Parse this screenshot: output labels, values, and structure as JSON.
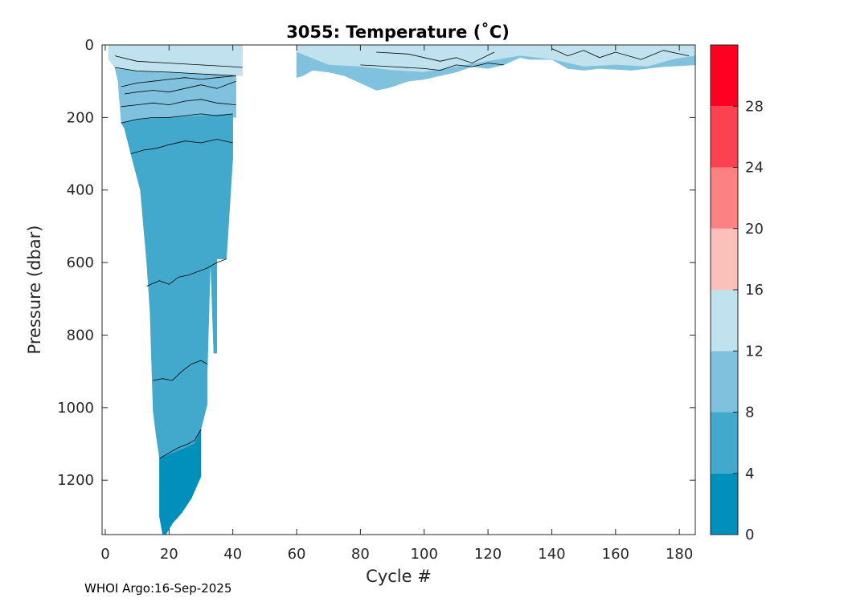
{
  "chart_data": {
    "type": "contourf",
    "title": "3055:  Temperature (˚C)",
    "xlabel": "Cycle #",
    "ylabel": "Pressure (dbar)",
    "xlim": [
      -1,
      185
    ],
    "ylim": [
      0,
      1350
    ],
    "y_reversed": true,
    "xticks": [
      0,
      20,
      40,
      60,
      80,
      100,
      120,
      140,
      160,
      180
    ],
    "yticks": [
      0,
      200,
      400,
      600,
      800,
      1000,
      1200
    ],
    "colorbar": {
      "levels": [
        0,
        4,
        8,
        12,
        16,
        20,
        24,
        28,
        32
      ],
      "tick_labels": [
        0,
        4,
        8,
        12,
        16,
        20,
        24,
        28
      ],
      "colors": [
        "#0090bb",
        "#42a9cc",
        "#80c2dd",
        "#c0e1ee",
        "#fcc0bb",
        "#fc8282",
        "#fc4250",
        "#ff0022"
      ]
    },
    "bands": [
      {
        "name": "surface-12-16",
        "color": "#c0e1ee",
        "points": [
          [
            1,
            0
          ],
          [
            43,
            0
          ],
          [
            43,
            85
          ],
          [
            41,
            85
          ],
          [
            30,
            80
          ],
          [
            20,
            75
          ],
          [
            10,
            72
          ],
          [
            3,
            62
          ],
          [
            1,
            40
          ]
        ]
      },
      {
        "name": "band-8-12",
        "color": "#80c2dd",
        "points": [
          [
            3,
            62
          ],
          [
            10,
            72
          ],
          [
            20,
            75
          ],
          [
            30,
            80
          ],
          [
            41,
            85
          ],
          [
            41,
            200
          ],
          [
            30,
            195
          ],
          [
            20,
            200
          ],
          [
            10,
            205
          ],
          [
            5,
            215
          ],
          [
            4,
            100
          ]
        ]
      },
      {
        "name": "band-4-8",
        "color": "#42a9cc",
        "points": [
          [
            5,
            215
          ],
          [
            10,
            205
          ],
          [
            20,
            200
          ],
          [
            30,
            195
          ],
          [
            40,
            190
          ],
          [
            40,
            310
          ],
          [
            38,
            590
          ],
          [
            35,
            590
          ],
          [
            35,
            850
          ],
          [
            34,
            850
          ],
          [
            33,
            590
          ],
          [
            32,
            900
          ],
          [
            32,
            990
          ],
          [
            30,
            1060
          ],
          [
            28,
            1100
          ],
          [
            20,
            1140
          ],
          [
            17,
            1140
          ],
          [
            16,
            1080
          ],
          [
            15,
            1010
          ],
          [
            14,
            730
          ],
          [
            13,
            600
          ],
          [
            11,
            400
          ],
          [
            8,
            300
          ],
          [
            6,
            230
          ]
        ]
      },
      {
        "name": "band-0-4",
        "color": "#0090bb",
        "points": [
          [
            17,
            1140
          ],
          [
            20,
            1130
          ],
          [
            28,
            1100
          ],
          [
            30,
            1060
          ],
          [
            30,
            1190
          ],
          [
            27,
            1250
          ],
          [
            24,
            1290
          ],
          [
            21,
            1320
          ],
          [
            19,
            1350
          ],
          [
            18,
            1350
          ],
          [
            17,
            1300
          ],
          [
            17,
            1190
          ]
        ]
      },
      {
        "name": "tail-12-16",
        "color": "#c0e1ee",
        "points": [
          [
            60,
            0
          ],
          [
            185,
            0
          ],
          [
            185,
            30
          ],
          [
            178,
            40
          ],
          [
            170,
            60
          ],
          [
            160,
            55
          ],
          [
            150,
            60
          ],
          [
            140,
            40
          ],
          [
            130,
            30
          ],
          [
            120,
            45
          ],
          [
            110,
            60
          ],
          [
            100,
            75
          ],
          [
            90,
            70
          ],
          [
            80,
            60
          ],
          [
            70,
            55
          ],
          [
            60,
            20
          ]
        ]
      },
      {
        "name": "tail-8-12",
        "color": "#80c2dd",
        "points": [
          [
            60,
            20
          ],
          [
            70,
            55
          ],
          [
            80,
            60
          ],
          [
            90,
            70
          ],
          [
            100,
            75
          ],
          [
            110,
            60
          ],
          [
            120,
            45
          ],
          [
            130,
            30
          ],
          [
            140,
            40
          ],
          [
            150,
            60
          ],
          [
            160,
            55
          ],
          [
            170,
            60
          ],
          [
            178,
            40
          ],
          [
            185,
            30
          ],
          [
            185,
            55
          ],
          [
            175,
            60
          ],
          [
            165,
            70
          ],
          [
            155,
            65
          ],
          [
            150,
            70
          ],
          [
            145,
            65
          ],
          [
            140,
            40
          ],
          [
            133,
            40
          ],
          [
            130,
            35
          ],
          [
            125,
            55
          ],
          [
            120,
            65
          ],
          [
            115,
            60
          ],
          [
            110,
            75
          ],
          [
            105,
            85
          ],
          [
            100,
            95
          ],
          [
            95,
            100
          ],
          [
            90,
            115
          ],
          [
            88,
            120
          ],
          [
            85,
            125
          ],
          [
            80,
            105
          ],
          [
            75,
            85
          ],
          [
            70,
            75
          ],
          [
            65,
            70
          ],
          [
            62,
            85
          ],
          [
            60,
            90
          ]
        ]
      }
    ],
    "contour_lines": [
      {
        "level": 14,
        "points": [
          [
            3,
            30
          ],
          [
            10,
            45
          ],
          [
            20,
            50
          ],
          [
            30,
            55
          ],
          [
            40,
            60
          ],
          [
            43,
            62
          ]
        ]
      },
      {
        "level": 12,
        "points": [
          [
            3,
            62
          ],
          [
            10,
            72
          ],
          [
            20,
            75
          ],
          [
            30,
            80
          ],
          [
            41,
            85
          ]
        ]
      },
      {
        "level": 11,
        "points": [
          [
            5,
            115
          ],
          [
            10,
            105
          ],
          [
            15,
            100
          ],
          [
            20,
            95
          ],
          [
            25,
            90
          ],
          [
            30,
            95
          ],
          [
            35,
            90
          ],
          [
            41,
            85
          ]
        ]
      },
      {
        "level": 10,
        "points": [
          [
            6,
            135
          ],
          [
            10,
            130
          ],
          [
            15,
            125
          ],
          [
            20,
            130
          ],
          [
            25,
            120
          ],
          [
            30,
            110
          ],
          [
            35,
            120
          ],
          [
            41,
            100
          ]
        ]
      },
      {
        "level": 9,
        "points": [
          [
            5,
            170
          ],
          [
            10,
            165
          ],
          [
            15,
            160
          ],
          [
            20,
            165
          ],
          [
            25,
            155
          ],
          [
            30,
            150
          ],
          [
            35,
            160
          ],
          [
            41,
            165
          ]
        ]
      },
      {
        "level": 8,
        "points": [
          [
            5,
            215
          ],
          [
            10,
            205
          ],
          [
            15,
            200
          ],
          [
            20,
            200
          ],
          [
            25,
            195
          ],
          [
            30,
            190
          ],
          [
            35,
            195
          ],
          [
            40,
            190
          ]
        ]
      },
      {
        "level": 7,
        "points": [
          [
            8,
            300
          ],
          [
            12,
            290
          ],
          [
            16,
            285
          ],
          [
            20,
            275
          ],
          [
            25,
            265
          ],
          [
            30,
            270
          ],
          [
            35,
            260
          ],
          [
            40,
            270
          ]
        ]
      },
      {
        "level": 6,
        "points": [
          [
            13,
            665
          ],
          [
            17,
            650
          ],
          [
            20,
            660
          ],
          [
            23,
            640
          ],
          [
            26,
            635
          ],
          [
            29,
            625
          ],
          [
            32,
            615
          ],
          [
            35,
            600
          ],
          [
            38,
            590
          ]
        ]
      },
      {
        "level": 5,
        "points": [
          [
            15,
            925
          ],
          [
            18,
            920
          ],
          [
            21,
            925
          ],
          [
            24,
            900
          ],
          [
            27,
            880
          ],
          [
            30,
            870
          ],
          [
            32,
            880
          ]
        ]
      },
      {
        "level": 4,
        "points": [
          [
            17,
            1140
          ],
          [
            20,
            1125
          ],
          [
            23,
            1110
          ],
          [
            26,
            1100
          ],
          [
            28,
            1090
          ],
          [
            30,
            1060
          ]
        ]
      },
      {
        "level": 11,
        "points": [
          [
            80,
            55
          ],
          [
            90,
            60
          ],
          [
            100,
            65
          ],
          [
            105,
            70
          ],
          [
            110,
            55
          ],
          [
            115,
            60
          ],
          [
            120,
            50
          ],
          [
            125,
            55
          ]
        ]
      },
      {
        "level": 12,
        "points": [
          [
            85,
            20
          ],
          [
            95,
            25
          ],
          [
            105,
            45
          ],
          [
            110,
            35
          ],
          [
            115,
            50
          ],
          [
            122,
            20
          ]
        ]
      },
      {
        "level": 13,
        "points": [
          [
            140,
            10
          ],
          [
            145,
            30
          ],
          [
            150,
            15
          ],
          [
            155,
            35
          ],
          [
            160,
            20
          ],
          [
            168,
            40
          ],
          [
            175,
            15
          ],
          [
            183,
            30
          ]
        ]
      }
    ]
  },
  "footer": {
    "text": "WHOI Argo:16-Sep-2025"
  }
}
